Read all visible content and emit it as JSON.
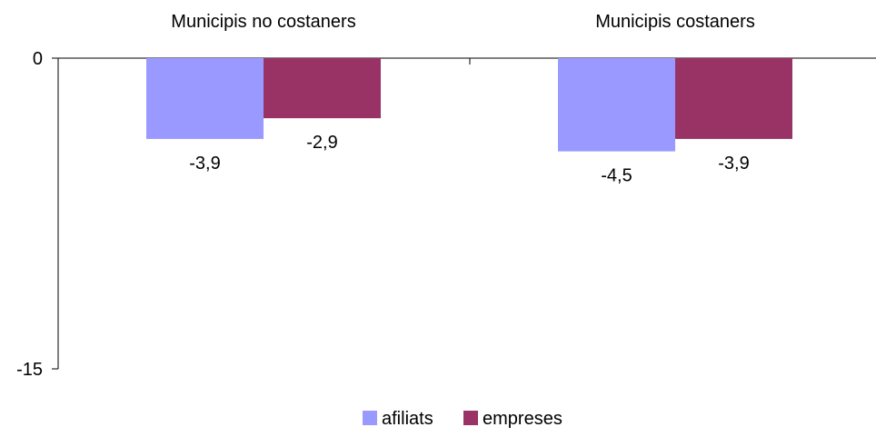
{
  "chart_data": {
    "type": "bar",
    "categories": [
      "Municipis no costaners",
      "Municipis costaners"
    ],
    "series": [
      {
        "name": "afiliats",
        "values": [
          -3.9,
          -4.5
        ],
        "labels": [
          "-3,9",
          "-4,5"
        ],
        "color": "#9999ff"
      },
      {
        "name": "empreses",
        "values": [
          -2.9,
          -3.9
        ],
        "labels": [
          "-2,9",
          "-3,9"
        ],
        "color": "#993366"
      }
    ],
    "ylim": [
      -15,
      0
    ],
    "yticks": [
      0,
      -15
    ],
    "ytick_labels": [
      "0",
      "-15"
    ],
    "category_axis_position": "top",
    "legend_placement": "bottom-center",
    "grid": false,
    "title": "",
    "xlabel": "",
    "ylabel": ""
  }
}
